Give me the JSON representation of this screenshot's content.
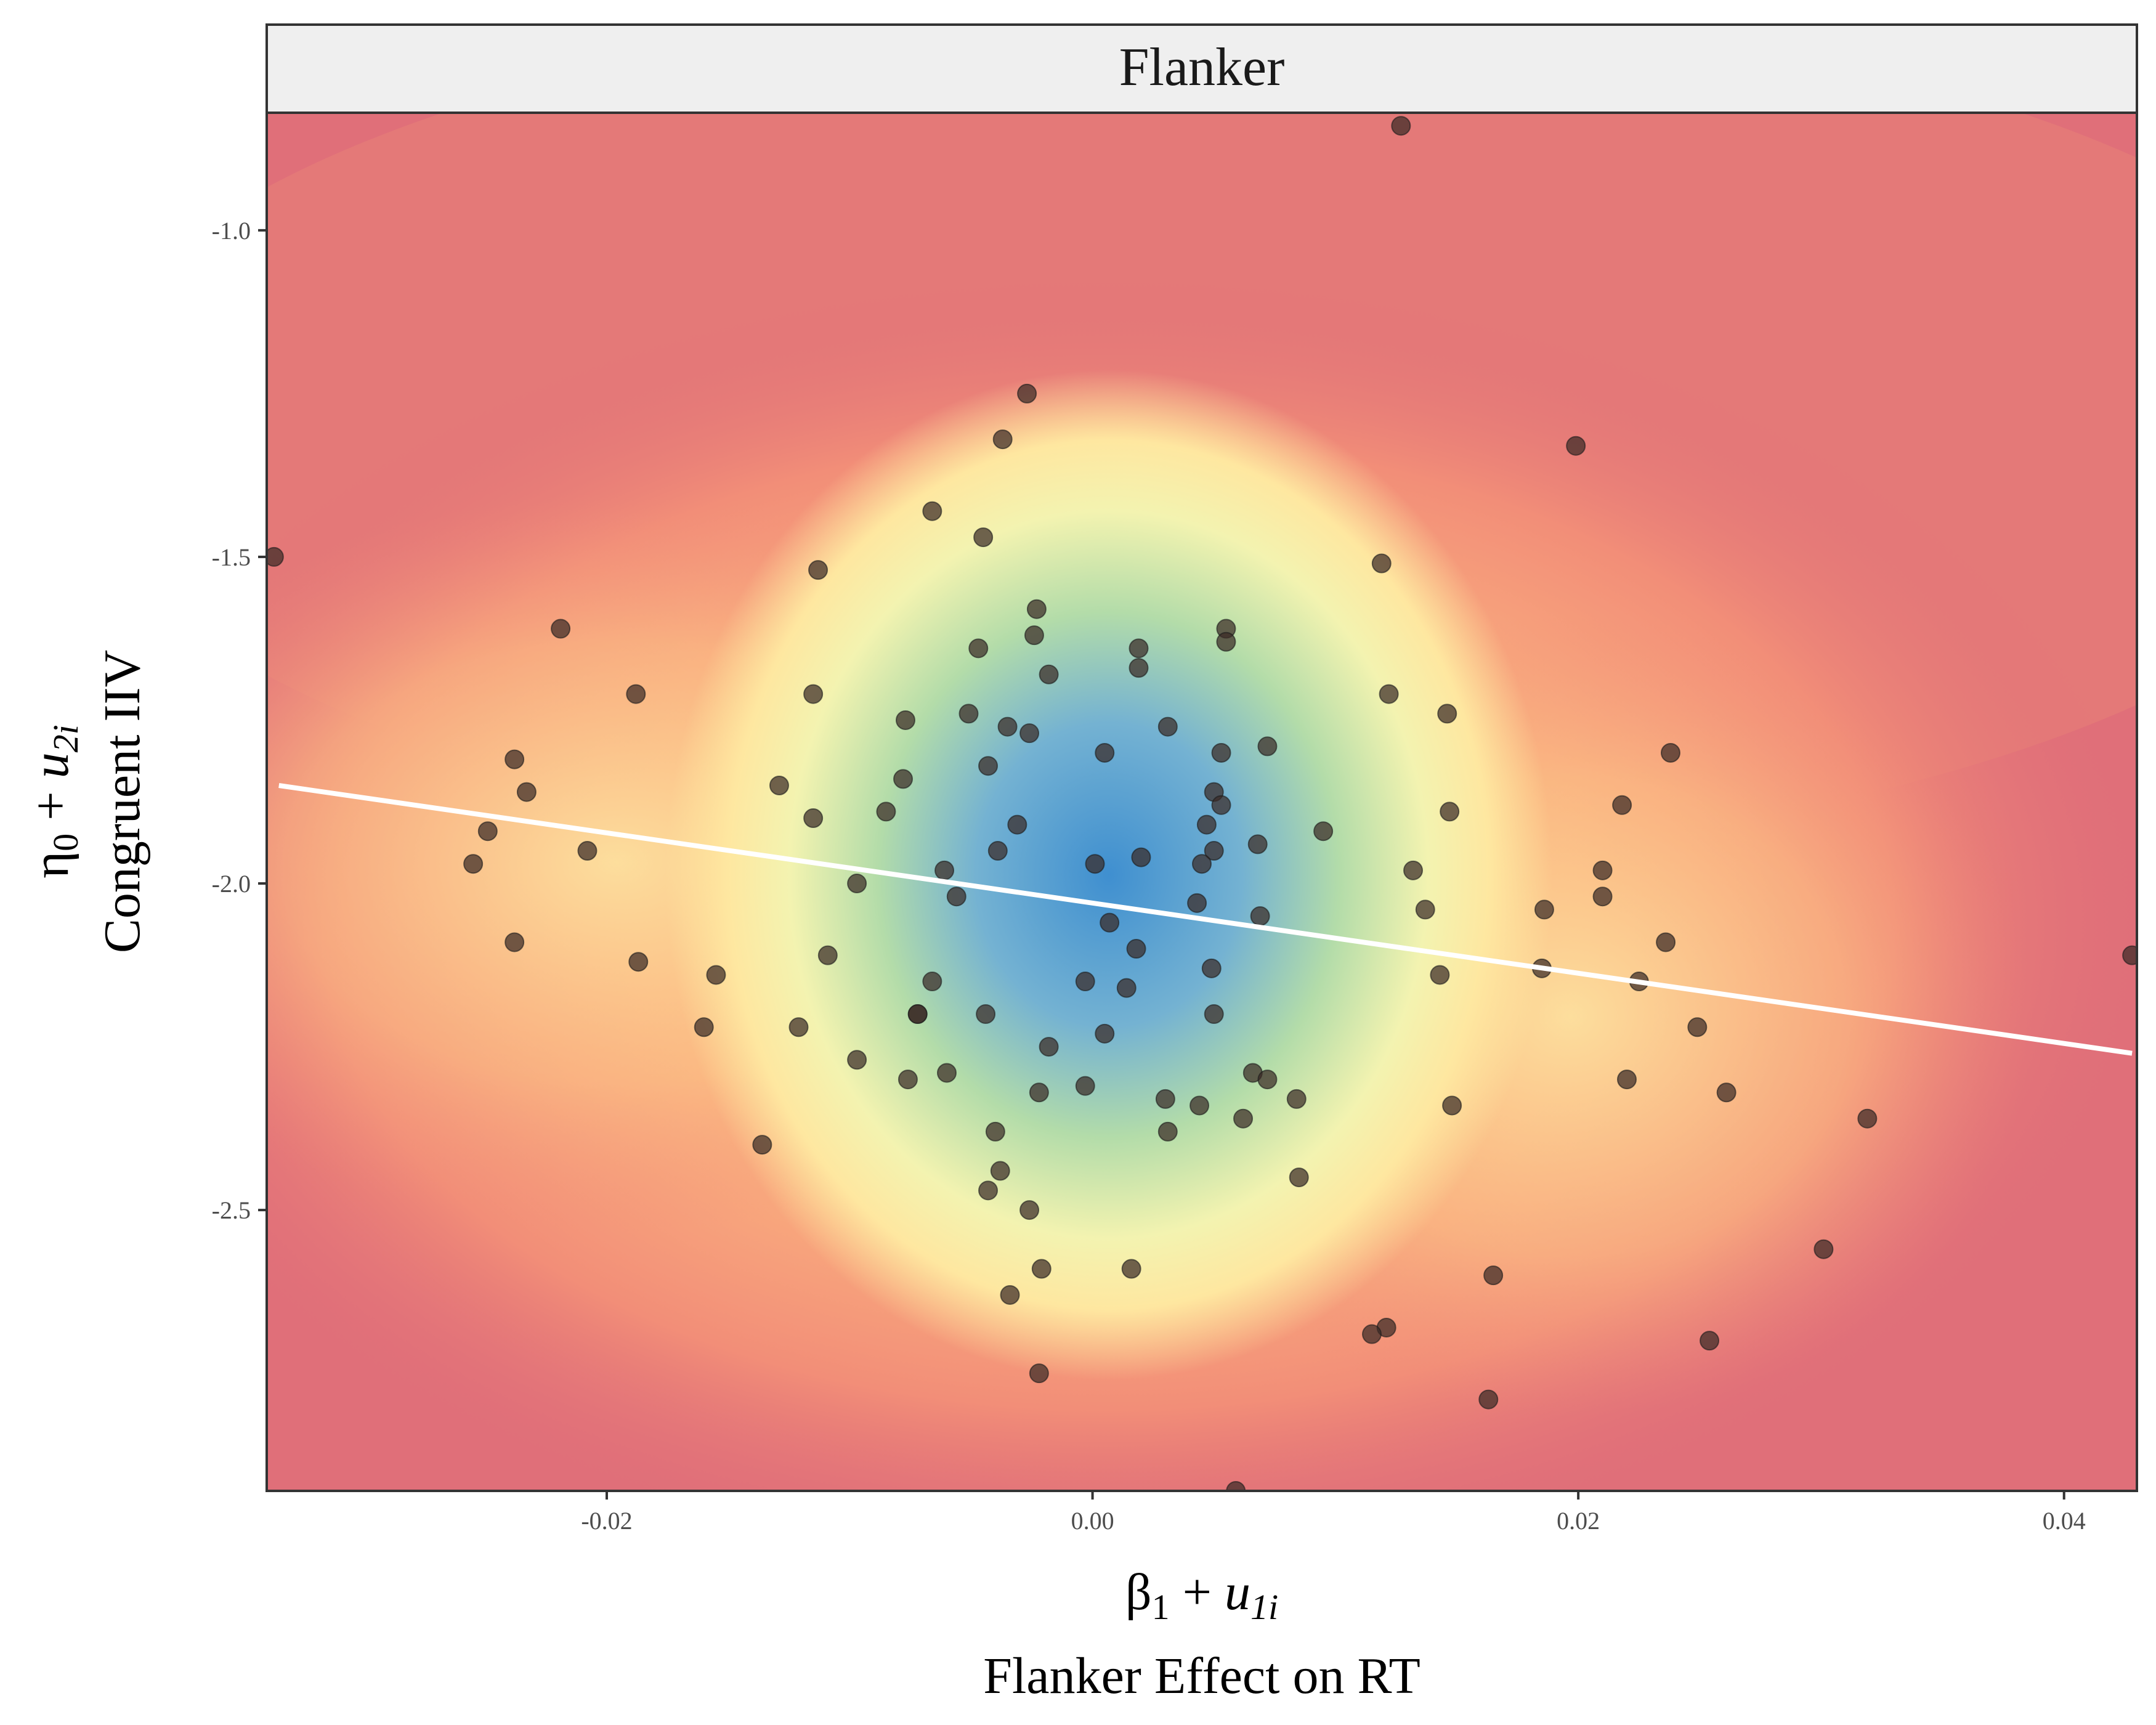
{
  "chart_data": {
    "type": "scatter",
    "facet_title": "Flanker",
    "xlabel": {
      "sym": "β",
      "sub": "1",
      "plus": " + ",
      "u": "u",
      "usub": "1i",
      "text": "Flanker Effect on RT"
    },
    "ylabel": {
      "sym": "η",
      "sub": "0",
      "plus": " + ",
      "u": "u",
      "usub": "2i",
      "text": "Congruent IIV"
    },
    "xlim": [
      -0.034,
      0.043
    ],
    "ylim": [
      -2.93,
      -0.82
    ],
    "x_ticks": [
      -0.02,
      0.0,
      0.02,
      0.04
    ],
    "x_tick_labels": [
      "-0.02",
      "0.00",
      "0.02",
      "0.04"
    ],
    "y_ticks": [
      -1.0,
      -1.5,
      -2.0,
      -2.5
    ],
    "y_tick_labels": [
      "-1.0",
      "-1.5",
      "-2.0",
      "-2.5"
    ],
    "background": "2D density heatmap (Spectral palette: blue center = high density, red = low)",
    "colors": {
      "density_high": "#3f8fd0",
      "density_mid": "#fff3a8",
      "density_low": "#e06f79",
      "points": "#3a2a25",
      "fit_line": "#ffffff",
      "strip_bg": "#efefef"
    },
    "fit_line": {
      "x": [
        -0.0335,
        0.0428
      ],
      "y": [
        -1.85,
        -2.26
      ]
    },
    "points": [
      {
        "x": 0.0127,
        "y": -0.84
      },
      {
        "x": -0.0027,
        "y": -1.25
      },
      {
        "x": -0.0037,
        "y": -1.32
      },
      {
        "x": 0.0199,
        "y": -1.33
      },
      {
        "x": -0.0066,
        "y": -1.43
      },
      {
        "x": -0.0045,
        "y": -1.47
      },
      {
        "x": -0.0337,
        "y": -1.5
      },
      {
        "x": 0.0119,
        "y": -1.51
      },
      {
        "x": -0.0113,
        "y": -1.52
      },
      {
        "x": -0.0023,
        "y": -1.58
      },
      {
        "x": 0.0055,
        "y": -1.61
      },
      {
        "x": -0.0219,
        "y": -1.61
      },
      {
        "x": -0.0024,
        "y": -1.62
      },
      {
        "x": 0.0055,
        "y": -1.63
      },
      {
        "x": -0.0047,
        "y": -1.64
      },
      {
        "x": 0.0019,
        "y": -1.64
      },
      {
        "x": 0.0019,
        "y": -1.67
      },
      {
        "x": -0.0018,
        "y": -1.68
      },
      {
        "x": -0.0188,
        "y": -1.71
      },
      {
        "x": -0.0115,
        "y": -1.71
      },
      {
        "x": 0.0122,
        "y": -1.71
      },
      {
        "x": 0.0146,
        "y": -1.74
      },
      {
        "x": -0.0077,
        "y": -1.75
      },
      {
        "x": -0.0051,
        "y": -1.74
      },
      {
        "x": -0.0035,
        "y": -1.76
      },
      {
        "x": -0.0026,
        "y": -1.77
      },
      {
        "x": 0.0031,
        "y": -1.76
      },
      {
        "x": 0.0072,
        "y": -1.79
      },
      {
        "x": 0.0005,
        "y": -1.8
      },
      {
        "x": 0.0053,
        "y": -1.8
      },
      {
        "x": 0.0238,
        "y": -1.8
      },
      {
        "x": -0.0238,
        "y": -1.81
      },
      {
        "x": -0.0043,
        "y": -1.82
      },
      {
        "x": -0.0078,
        "y": -1.84
      },
      {
        "x": -0.0129,
        "y": -1.85
      },
      {
        "x": -0.0233,
        "y": -1.86
      },
      {
        "x": 0.005,
        "y": -1.86
      },
      {
        "x": 0.0053,
        "y": -1.88
      },
      {
        "x": 0.0218,
        "y": -1.88
      },
      {
        "x": -0.0085,
        "y": -1.89
      },
      {
        "x": 0.0147,
        "y": -1.89
      },
      {
        "x": -0.0115,
        "y": -1.9
      },
      {
        "x": -0.0031,
        "y": -1.91
      },
      {
        "x": 0.0047,
        "y": -1.91
      },
      {
        "x": 0.0095,
        "y": -1.92
      },
      {
        "x": -0.0249,
        "y": -1.92
      },
      {
        "x": 0.0068,
        "y": -1.94
      },
      {
        "x": -0.0208,
        "y": -1.95
      },
      {
        "x": 0.005,
        "y": -1.95
      },
      {
        "x": -0.0039,
        "y": -1.95
      },
      {
        "x": 0.002,
        "y": -1.96
      },
      {
        "x": 0.0001,
        "y": -1.97
      },
      {
        "x": 0.0045,
        "y": -1.97
      },
      {
        "x": -0.0255,
        "y": -1.97
      },
      {
        "x": -0.0061,
        "y": -1.98
      },
      {
        "x": 0.0132,
        "y": -1.98
      },
      {
        "x": 0.021,
        "y": -1.98
      },
      {
        "x": -0.0097,
        "y": -2.0
      },
      {
        "x": -0.0056,
        "y": -2.02
      },
      {
        "x": 0.021,
        "y": -2.02
      },
      {
        "x": 0.0043,
        "y": -2.03
      },
      {
        "x": 0.0137,
        "y": -2.04
      },
      {
        "x": 0.0186,
        "y": -2.04
      },
      {
        "x": 0.0007,
        "y": -2.06
      },
      {
        "x": 0.0069,
        "y": -2.05
      },
      {
        "x": -0.0238,
        "y": -2.09
      },
      {
        "x": 0.0236,
        "y": -2.09
      },
      {
        "x": 0.0018,
        "y": -2.1
      },
      {
        "x": -0.0109,
        "y": -2.11
      },
      {
        "x": 0.0428,
        "y": -2.11
      },
      {
        "x": -0.0187,
        "y": -2.12
      },
      {
        "x": 0.0185,
        "y": -2.13
      },
      {
        "x": 0.0049,
        "y": -2.13
      },
      {
        "x": -0.0155,
        "y": -2.14
      },
      {
        "x": 0.0143,
        "y": -2.14
      },
      {
        "x": -0.0066,
        "y": -2.15
      },
      {
        "x": -0.0003,
        "y": -2.15
      },
      {
        "x": 0.0014,
        "y": -2.16
      },
      {
        "x": 0.0225,
        "y": -2.15
      },
      {
        "x": -0.0072,
        "y": -2.2
      },
      {
        "x": -0.0072,
        "y": -2.2
      },
      {
        "x": -0.0044,
        "y": -2.2
      },
      {
        "x": 0.005,
        "y": -2.2
      },
      {
        "x": -0.016,
        "y": -2.22
      },
      {
        "x": -0.0121,
        "y": -2.22
      },
      {
        "x": 0.0249,
        "y": -2.22
      },
      {
        "x": 0.0005,
        "y": -2.23
      },
      {
        "x": -0.0018,
        "y": -2.25
      },
      {
        "x": -0.0097,
        "y": -2.27
      },
      {
        "x": 0.0066,
        "y": -2.29
      },
      {
        "x": -0.006,
        "y": -2.29
      },
      {
        "x": 0.0072,
        "y": -2.3
      },
      {
        "x": -0.0076,
        "y": -2.3
      },
      {
        "x": 0.022,
        "y": -2.3
      },
      {
        "x": -0.0003,
        "y": -2.31
      },
      {
        "x": -0.0022,
        "y": -2.32
      },
      {
        "x": 0.003,
        "y": -2.33
      },
      {
        "x": 0.0044,
        "y": -2.34
      },
      {
        "x": 0.0084,
        "y": -2.33
      },
      {
        "x": 0.0261,
        "y": -2.32
      },
      {
        "x": 0.0148,
        "y": -2.34
      },
      {
        "x": 0.0062,
        "y": -2.36
      },
      {
        "x": 0.0319,
        "y": -2.36
      },
      {
        "x": -0.0136,
        "y": -2.4
      },
      {
        "x": 0.0031,
        "y": -2.38
      },
      {
        "x": -0.004,
        "y": -2.38
      },
      {
        "x": -0.0038,
        "y": -2.44
      },
      {
        "x": 0.0085,
        "y": -2.45
      },
      {
        "x": -0.0043,
        "y": -2.47
      },
      {
        "x": -0.0026,
        "y": -2.5
      },
      {
        "x": 0.0301,
        "y": -2.56
      },
      {
        "x": -0.0021,
        "y": -2.59
      },
      {
        "x": 0.0016,
        "y": -2.59
      },
      {
        "x": 0.0165,
        "y": -2.6
      },
      {
        "x": -0.0034,
        "y": -2.63
      },
      {
        "x": 0.0121,
        "y": -2.68
      },
      {
        "x": 0.0115,
        "y": -2.69
      },
      {
        "x": 0.0254,
        "y": -2.7
      },
      {
        "x": -0.0022,
        "y": -2.75
      },
      {
        "x": 0.0163,
        "y": -2.79
      },
      {
        "x": 0.0059,
        "y": -2.93
      }
    ]
  }
}
